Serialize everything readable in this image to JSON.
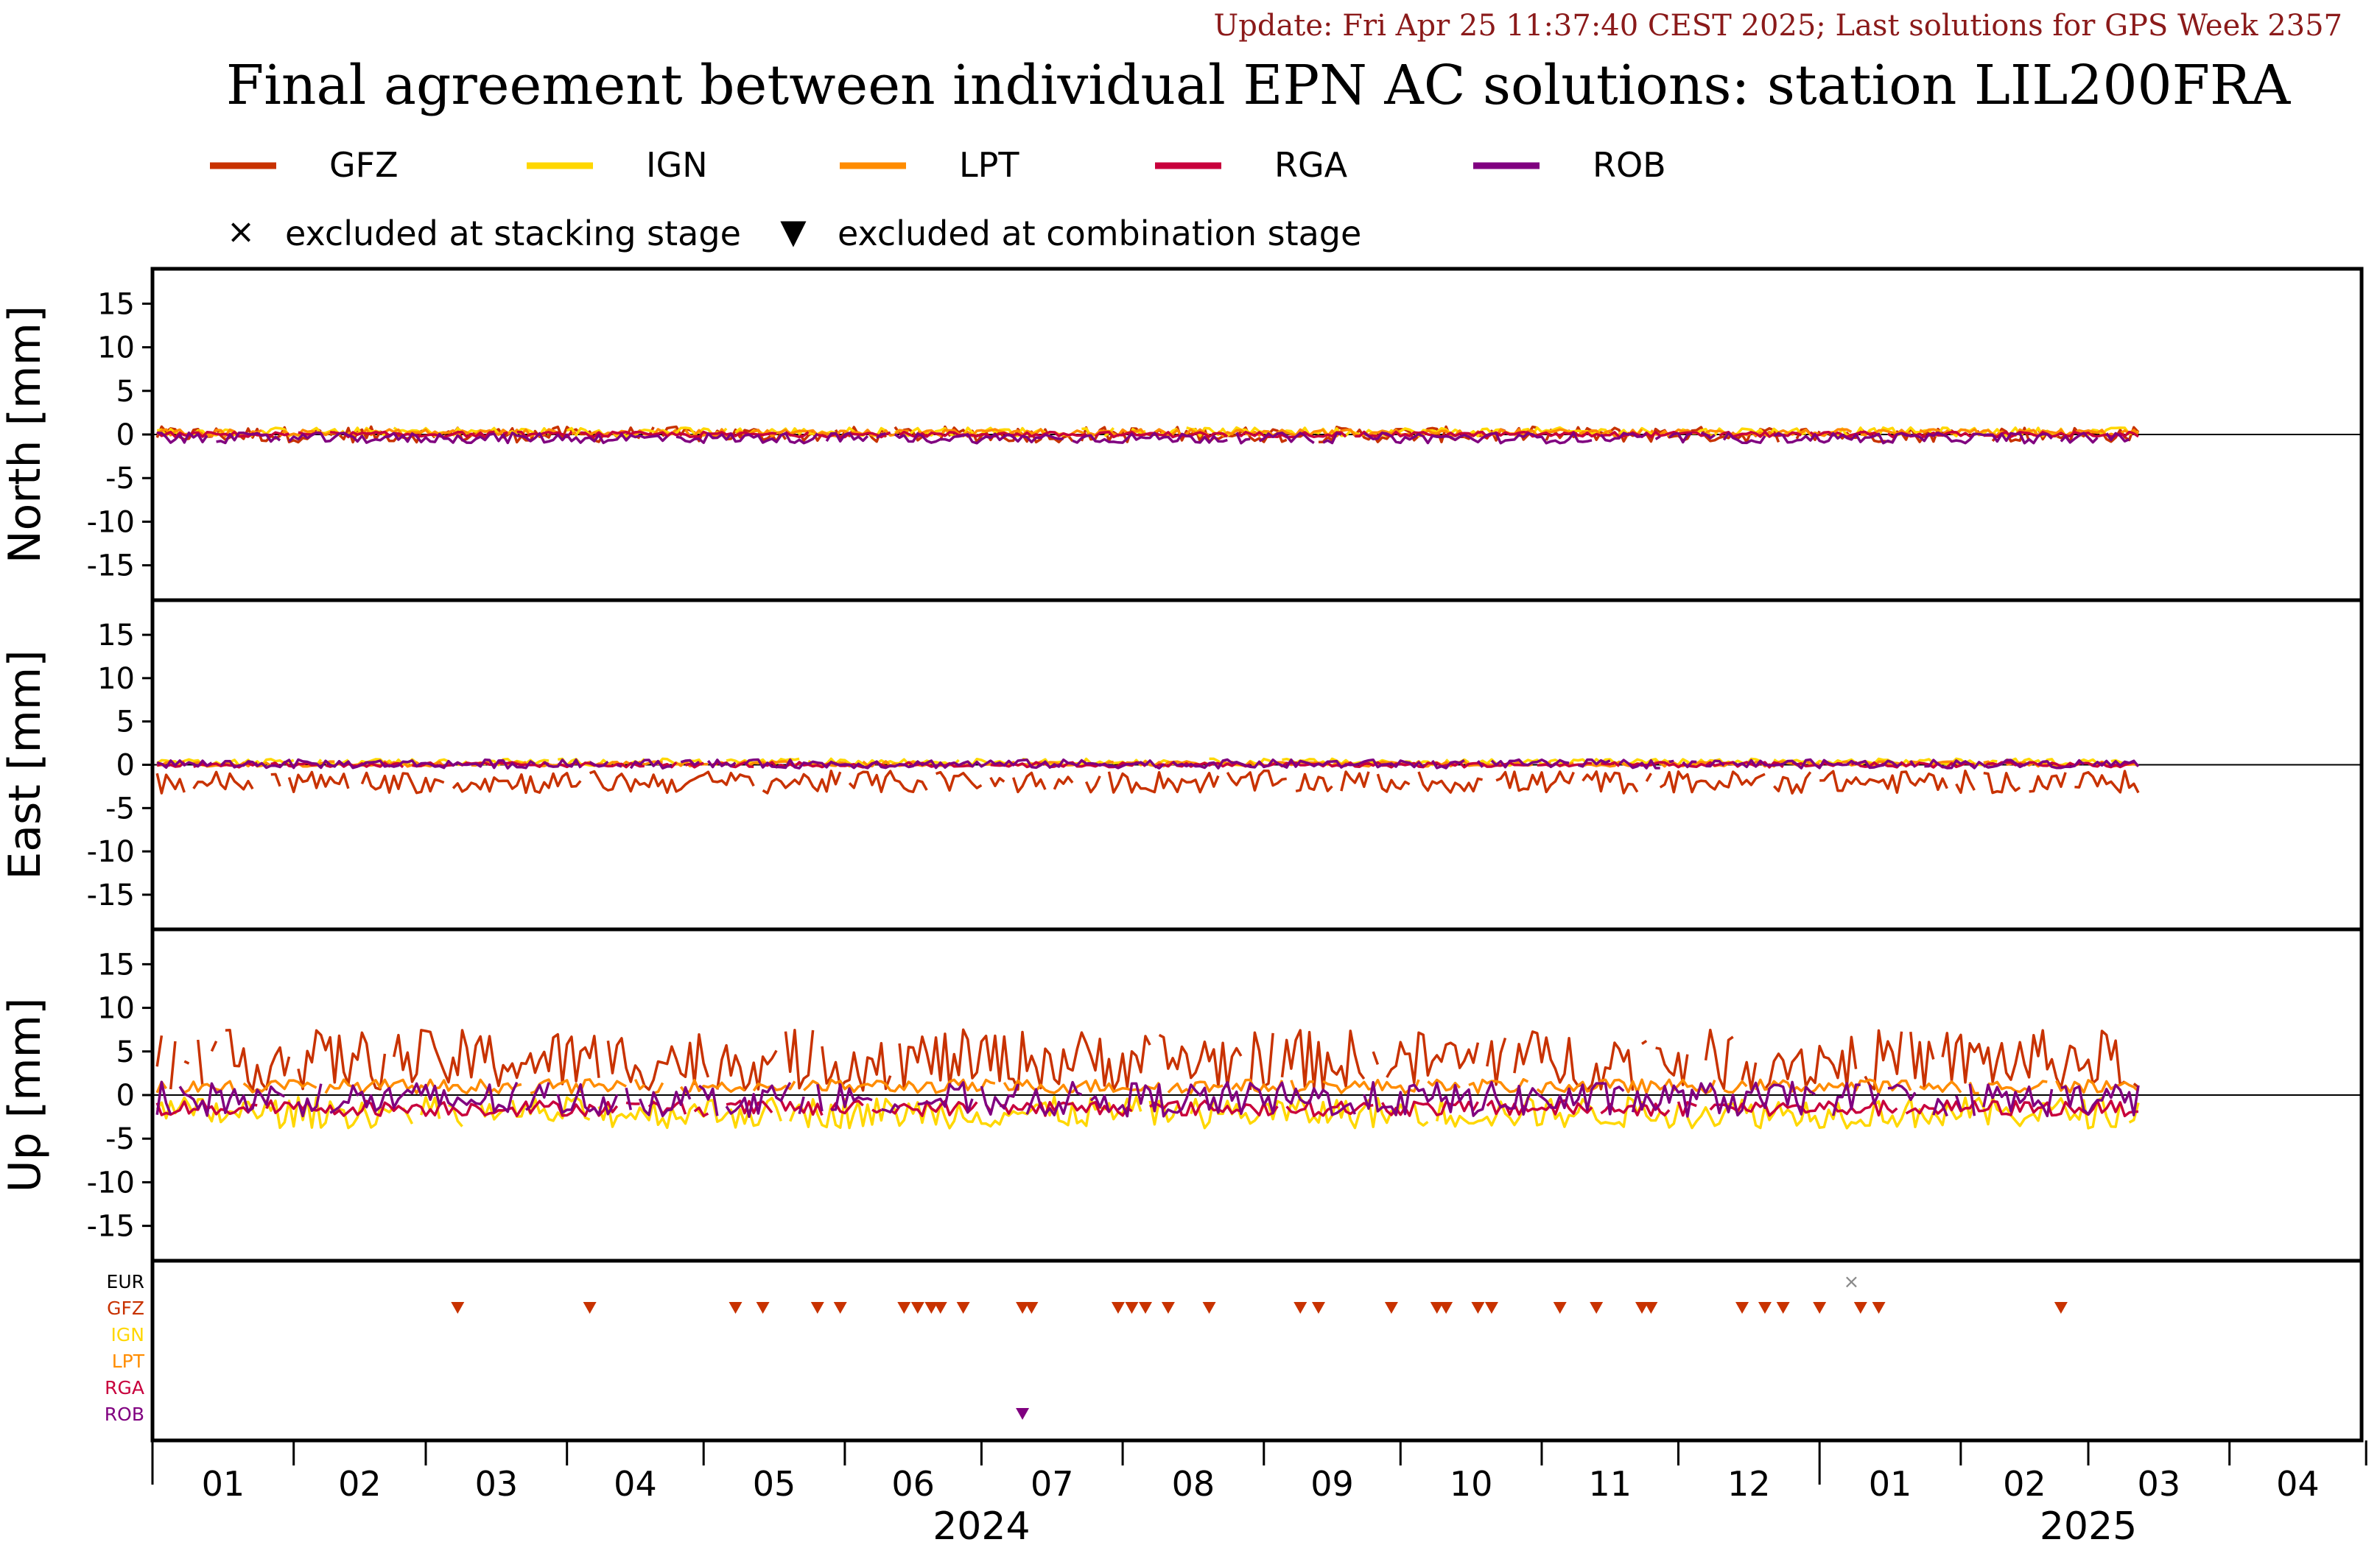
{
  "header": {
    "update_text": "Update: Fri Apr 25 11:37:40 CEST 2025; Last solutions for GPS Week 2357",
    "title": "Final agreement between individual EPN AC solutions: station LIL200FRA"
  },
  "legend": {
    "series": [
      {
        "name": "GFZ",
        "color": "#c83200"
      },
      {
        "name": "IGN",
        "color": "#ffd700"
      },
      {
        "name": "LPT",
        "color": "#ff8c00"
      },
      {
        "name": "RGA",
        "color": "#c8003c"
      },
      {
        "name": "ROB",
        "color": "#800080"
      }
    ],
    "markers": [
      {
        "symbol": "×",
        "label": "excluded at stacking stage"
      },
      {
        "symbol": "▼",
        "label": "excluded at combination stage"
      }
    ]
  },
  "chart_data": {
    "type": "line",
    "x_range": [
      "2024-01-01",
      "2025-04-30"
    ],
    "ylim": [
      -19,
      19
    ],
    "yticks": [
      15,
      10,
      5,
      0,
      -5,
      -10,
      -15
    ],
    "y_tick_labels": [
      "15",
      "10",
      "5",
      "0",
      "-5",
      "-10",
      "-15"
    ],
    "months": [
      "01",
      "02",
      "03",
      "04",
      "05",
      "06",
      "07",
      "08",
      "09",
      "10",
      "11",
      "12",
      "01",
      "02",
      "03",
      "04"
    ],
    "years": [
      {
        "label": "2024",
        "at": "2024-07-01"
      },
      {
        "label": "2025",
        "at": "2025-03-01"
      }
    ],
    "data_end": "2025-03-12",
    "panels": [
      {
        "ylabel": "North [mm]",
        "series": [
          {
            "name": "GFZ",
            "mean": 0.0,
            "amp": 0.9
          },
          {
            "name": "IGN",
            "mean": 0.3,
            "amp": 0.5
          },
          {
            "name": "LPT",
            "mean": 0.2,
            "amp": 0.4
          },
          {
            "name": "RGA",
            "mean": 0.0,
            "amp": 0.3
          },
          {
            "name": "ROB",
            "mean": -0.4,
            "amp": 0.6
          }
        ]
      },
      {
        "ylabel": "East [mm]",
        "series": [
          {
            "name": "GFZ",
            "mean": -2.0,
            "amp": 1.3
          },
          {
            "name": "IGN",
            "mean": 0.3,
            "amp": 0.4
          },
          {
            "name": "LPT",
            "mean": 0.1,
            "amp": 0.3
          },
          {
            "name": "RGA",
            "mean": 0.0,
            "amp": 0.3
          },
          {
            "name": "ROB",
            "mean": 0.1,
            "amp": 0.5
          }
        ]
      },
      {
        "ylabel": "Up [mm]",
        "series": [
          {
            "name": "GFZ",
            "mean": 4.0,
            "amp": 3.5
          },
          {
            "name": "IGN",
            "mean": -2.0,
            "amp": 1.8
          },
          {
            "name": "LPT",
            "mean": 1.0,
            "amp": 0.8
          },
          {
            "name": "RGA",
            "mean": -1.5,
            "amp": 0.9
          },
          {
            "name": "ROB",
            "mean": -0.5,
            "amp": 2.0
          }
        ]
      }
    ],
    "exclusions": {
      "rows": [
        {
          "name": "EUR",
          "color": "#000000"
        },
        {
          "name": "GFZ",
          "color": "#c83200"
        },
        {
          "name": "IGN",
          "color": "#ffd700"
        },
        {
          "name": "LPT",
          "color": "#ff8c00"
        },
        {
          "name": "RGA",
          "color": "#c8003c"
        },
        {
          "name": "ROB",
          "color": "#800080"
        }
      ],
      "stacking": [
        {
          "row": "EUR",
          "date": "2025-01-08"
        }
      ],
      "combination": [
        {
          "row": "GFZ",
          "dates": [
            "2024-03-08",
            "2024-04-06",
            "2024-05-08",
            "2024-05-14",
            "2024-05-26",
            "2024-05-31",
            "2024-06-14",
            "2024-06-17",
            "2024-06-20",
            "2024-06-22",
            "2024-06-27",
            "2024-07-10",
            "2024-07-12",
            "2024-07-31",
            "2024-08-03",
            "2024-08-06",
            "2024-08-11",
            "2024-08-20",
            "2024-09-09",
            "2024-09-13",
            "2024-09-29",
            "2024-10-09",
            "2024-10-11",
            "2024-10-18",
            "2024-10-21",
            "2024-11-05",
            "2024-11-13",
            "2024-11-23",
            "2024-11-25",
            "2024-12-15",
            "2024-12-20",
            "2024-12-24",
            "2025-01-01",
            "2025-01-10",
            "2025-01-14",
            "2025-02-23"
          ]
        },
        {
          "row": "ROB",
          "dates": [
            "2024-07-10"
          ]
        }
      ]
    }
  }
}
